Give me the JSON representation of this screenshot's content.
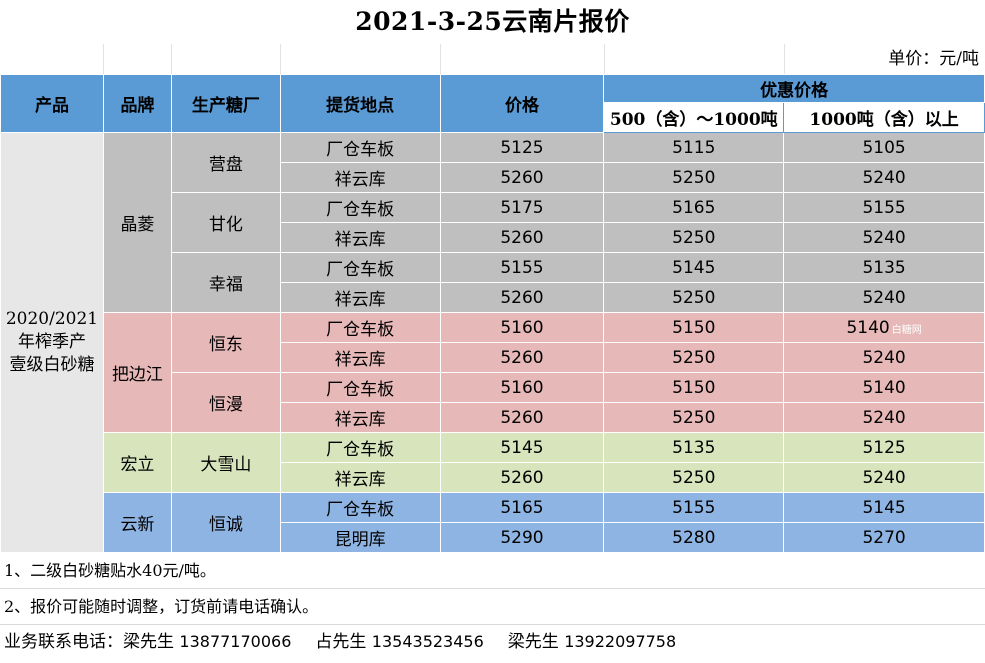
{
  "title": "2021-3-25云南片报价",
  "unit": "单价：元/吨",
  "headers": {
    "product": "产品",
    "brand": "品牌",
    "factory": "生产糖厂",
    "pickup": "提货地点",
    "price": "价格",
    "discount": "优惠价格",
    "tier1": "500（含）～1000吨",
    "tier2": "1000吨（含）以上"
  },
  "product_name": "2020/2021\n年榨季产\n壹级白砂糖",
  "product_lines": [
    "2020/2021",
    "年榨季产",
    "壹级白砂糖"
  ],
  "colors": {
    "header": "#5b9bd5",
    "product": "#e7e7e7",
    "jingling": "#bfbfbf",
    "babianjiang": "#e6b8b7",
    "hongli": "#d7e4bc",
    "yunxin": "#8eb4e3"
  },
  "groups": [
    {
      "brand": "晶菱",
      "color": "gray",
      "factories": [
        {
          "name": "营盘",
          "rows": [
            {
              "loc": "厂仓车板",
              "price": "5125",
              "t1": "5115",
              "t2": "5105"
            },
            {
              "loc": "祥云库",
              "price": "5260",
              "t1": "5250",
              "t2": "5240"
            }
          ]
        },
        {
          "name": "甘化",
          "rows": [
            {
              "loc": "厂仓车板",
              "price": "5175",
              "t1": "5165",
              "t2": "5155"
            },
            {
              "loc": "祥云库",
              "price": "5260",
              "t1": "5250",
              "t2": "5240"
            }
          ]
        },
        {
          "name": "幸福",
          "rows": [
            {
              "loc": "厂仓车板",
              "price": "5155",
              "t1": "5145",
              "t2": "5135"
            },
            {
              "loc": "祥云库",
              "price": "5260",
              "t1": "5250",
              "t2": "5240"
            }
          ]
        }
      ]
    },
    {
      "brand": "把边江",
      "color": "pink",
      "factories": [
        {
          "name": "恒东",
          "rows": [
            {
              "loc": "厂仓车板",
              "price": "5160",
              "t1": "5150",
              "t2": "5140"
            },
            {
              "loc": "祥云库",
              "price": "5260",
              "t1": "5250",
              "t2": "5240"
            }
          ]
        },
        {
          "name": "恒漫",
          "rows": [
            {
              "loc": "厂仓车板",
              "price": "5160",
              "t1": "5150",
              "t2": "5140"
            },
            {
              "loc": "祥云库",
              "price": "5260",
              "t1": "5250",
              "t2": "5240"
            }
          ]
        }
      ]
    },
    {
      "brand": "宏立",
      "color": "green",
      "factories": [
        {
          "name": "大雪山",
          "rows": [
            {
              "loc": "厂仓车板",
              "price": "5145",
              "t1": "5135",
              "t2": "5125"
            },
            {
              "loc": "祥云库",
              "price": "5260",
              "t1": "5250",
              "t2": "5240"
            }
          ]
        }
      ]
    },
    {
      "brand": "云新",
      "color": "blue",
      "factories": [
        {
          "name": "恒诚",
          "rows": [
            {
              "loc": "厂仓车板",
              "price": "5165",
              "t1": "5155",
              "t2": "5145"
            },
            {
              "loc": "昆明库",
              "price": "5290",
              "t1": "5280",
              "t2": "5270"
            }
          ]
        }
      ]
    }
  ],
  "watermark": "白糖网",
  "notes": [
    "1、二级白砂糖贴水40元/吨。",
    "2、报价可能随时调整，订货前请电话确认。"
  ],
  "contact": {
    "label": "业务联系电话：",
    "people": [
      {
        "name": "梁先生",
        "phone": "13877170066"
      },
      {
        "name": "占先生",
        "phone": "13543523456"
      },
      {
        "name": "梁先生",
        "phone": "13922097758"
      }
    ]
  }
}
